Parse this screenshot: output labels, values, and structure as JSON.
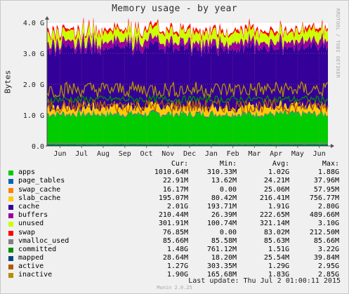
{
  "title": "Memory usage - by year",
  "ylabel": "Bytes",
  "watermark": "RRDTOOL / TOBI OETIKER",
  "columns": [
    "Cur:",
    "Min:",
    "Avg:",
    "Max:"
  ],
  "last_update": "Last update: Thu Jul  2 01:00:11 2015",
  "footer": "Munin 2.0.25",
  "chart_data": {
    "type": "area",
    "stacked": true,
    "title": "Memory usage - by year",
    "ylabel": "Bytes",
    "ylim": [
      0,
      4.0
    ],
    "y_unit": "G",
    "y_ticks": [
      "0.0",
      "1.0 G",
      "2.0 G",
      "3.0 G",
      "4.0 G"
    ],
    "y_tick_values": [
      0,
      1,
      2,
      3,
      4
    ],
    "x_ticks": [
      "Jun",
      "Jul",
      "Aug",
      "Sep",
      "Oct",
      "Nov",
      "Dec",
      "Jan",
      "Feb",
      "Mar",
      "Apr",
      "May",
      "Jun"
    ],
    "grid": true,
    "series": [
      {
        "name": "apps",
        "color": "#00cc00",
        "style": "area",
        "cur": "1010.64M",
        "min": "310.33M",
        "avg": "1.02G",
        "max": "1.88G",
        "avg_g": 1.02
      },
      {
        "name": "page_tables",
        "color": "#0066b3",
        "style": "area",
        "cur": "22.91M",
        "min": "13.62M",
        "avg": "24.21M",
        "max": "37.96M",
        "avg_g": 0.024
      },
      {
        "name": "swap_cache",
        "color": "#ff8000",
        "style": "area",
        "cur": "16.17M",
        "min": "0.00",
        "avg": "25.06M",
        "max": "57.95M",
        "avg_g": 0.025
      },
      {
        "name": "slab_cache",
        "color": "#ffcc00",
        "style": "area",
        "cur": "195.07M",
        "min": "80.42M",
        "avg": "216.41M",
        "max": "756.77M",
        "avg_g": 0.216
      },
      {
        "name": "cache",
        "color": "#330099",
        "style": "area",
        "cur": "2.01G",
        "min": "193.71M",
        "avg": "1.91G",
        "max": "2.80G",
        "avg_g": 1.91
      },
      {
        "name": "buffers",
        "color": "#990099",
        "style": "area",
        "cur": "210.44M",
        "min": "26.39M",
        "avg": "222.65M",
        "max": "489.66M",
        "avg_g": 0.2
      },
      {
        "name": "unused",
        "color": "#ccff00",
        "style": "area",
        "cur": "301.91M",
        "min": "100.74M",
        "avg": "321.14M",
        "max": "3.10G",
        "avg_g": 0.321
      },
      {
        "name": "swap",
        "color": "#ff0000",
        "style": "area",
        "cur": "76.85M",
        "min": "0.00",
        "avg": "83.02M",
        "max": "212.50M",
        "avg_g": 0.083
      },
      {
        "name": "vmalloc_used",
        "color": "#808080",
        "style": "line",
        "cur": "85.66M",
        "min": "85.58M",
        "avg": "85.63M",
        "max": "85.66M",
        "avg_g": 0.086
      },
      {
        "name": "committed",
        "color": "#008f00",
        "style": "line",
        "cur": "1.48G",
        "min": "761.12M",
        "avg": "1.51G",
        "max": "3.22G",
        "avg_g": 1.51
      },
      {
        "name": "mapped",
        "color": "#00487d",
        "style": "line",
        "cur": "28.64M",
        "min": "18.20M",
        "avg": "25.54M",
        "max": "39.84M",
        "avg_g": 0.0255
      },
      {
        "name": "active",
        "color": "#b35a00",
        "style": "line",
        "cur": "1.27G",
        "min": "303.35M",
        "avg": "1.29G",
        "max": "2.95G",
        "avg_g": 1.29
      },
      {
        "name": "inactive",
        "color": "#b38f00",
        "style": "line",
        "cur": "1.90G",
        "min": "165.68M",
        "avg": "1.83G",
        "max": "2.85G",
        "avg_g": 1.83
      }
    ]
  }
}
